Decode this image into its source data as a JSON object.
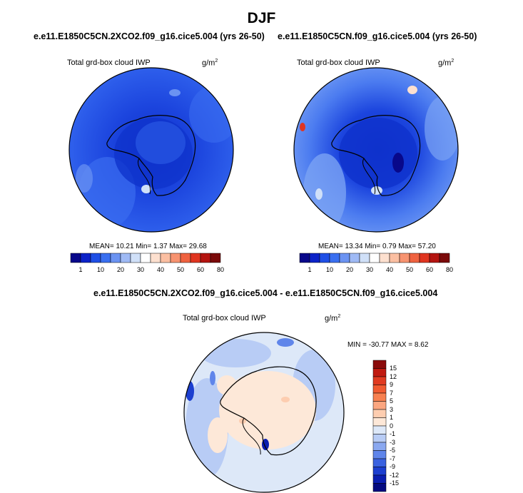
{
  "title": "DJF",
  "panels": [
    {
      "case": "e.e11.E1850C5CN.2XCO2.f09_g16.cice5.004 (yrs 26-50)",
      "variable": "Total grd-box cloud IWP",
      "unit_base": "g/m",
      "unit_exp": "2",
      "stats": "MEAN=  10.21  Min=   1.37  Max=  29.68"
    },
    {
      "case": "e.e11.E1850C5CN.f09_g16.cice5.004 (yrs 26-50)",
      "variable": "Total grd-box cloud IWP",
      "unit_base": "g/m",
      "unit_exp": "2",
      "stats": "MEAN=  13.34  Min=   0.79  Max=  57.20"
    }
  ],
  "colorbar": {
    "labels": [
      "1",
      "10",
      "20",
      "30",
      "40",
      "50",
      "60",
      "80"
    ],
    "colors": [
      "#08088a",
      "#0c22c8",
      "#1f4fe6",
      "#3a6ff0",
      "#6b93f2",
      "#9fbaf5",
      "#d0e0f8",
      "#ffffff",
      "#fde0cf",
      "#fbbfa2",
      "#f79370",
      "#ef6240",
      "#e03520",
      "#b41410",
      "#7a0a0a"
    ]
  },
  "diff_panel": {
    "title": "e.e11.E1850C5CN.2XCO2.f09_g16.cice5.004 - e.e11.E1850C5CN.f09_g16.cice5.004",
    "variable": "Total grd-box cloud IWP",
    "unit_base": "g/m",
    "unit_exp": "2",
    "stats": "MIN = -30.77 MAX =   8.62",
    "colorbar_labels": [
      "15",
      "12",
      "9",
      "7",
      "5",
      "3",
      "1",
      "0",
      "-1",
      "-3",
      "-5",
      "-7",
      "-9",
      "-12",
      "-15"
    ],
    "colorbar_colors": [
      "#8a0a0a",
      "#c01a10",
      "#e03a20",
      "#f05a30",
      "#f78050",
      "#fba680",
      "#fdcdb0",
      "#fde8d8",
      "#dde8f8",
      "#b8ccf5",
      "#8aa8f0",
      "#5f85ea",
      "#3a62e0",
      "#1c3fd0",
      "#0a1eb0",
      "#040a80"
    ]
  }
}
